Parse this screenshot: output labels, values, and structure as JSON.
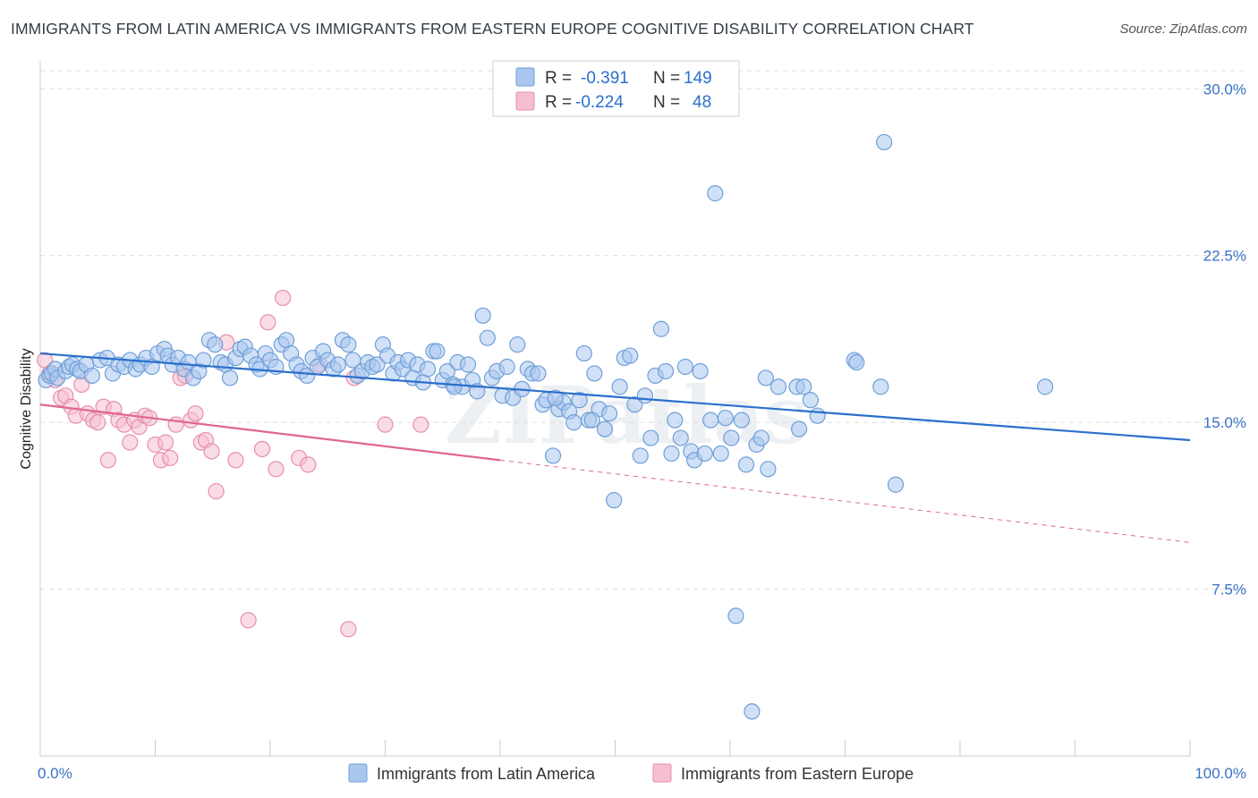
{
  "title": "IMMIGRANTS FROM LATIN AMERICA VS IMMIGRANTS FROM EASTERN EUROPE COGNITIVE DISABILITY CORRELATION CHART",
  "source": "Source: ZipAtlas.com",
  "watermark": "ZIPatlas",
  "colors": {
    "blue_fill": "#a9c7ee",
    "blue_stroke": "#6f9fd8",
    "blue_line": "#2b6fcc",
    "pink_fill": "#f6bfd0",
    "pink_stroke": "#e78fab",
    "pink_line": "#e0678f",
    "axis_text": "#3a72c4",
    "grid": "#dcdcdc"
  },
  "legend": {
    "r_label": "R =",
    "n_label": "N =",
    "rows": [
      {
        "series": "blue",
        "r": "-0.391",
        "n": "149"
      },
      {
        "series": "pink",
        "r": "-0.224",
        "n": "48"
      }
    ]
  },
  "chart_data": {
    "type": "scatter",
    "xlabel": "",
    "ylabel": "Cognitive Disability",
    "xlim": [
      0,
      100
    ],
    "ylim": [
      0,
      31.5
    ],
    "x_tick_labels": [
      "0.0%",
      "100.0%"
    ],
    "y_ticks": [
      7.5,
      15.0,
      22.5,
      30.0
    ],
    "y_tick_labels": [
      "7.5%",
      "15.0%",
      "22.5%",
      "30.0%"
    ],
    "grid": true,
    "legend_position": "top-center",
    "series": [
      {
        "name": "Immigrants from Latin America",
        "color": "blue",
        "r": -0.391,
        "n": 149,
        "trend": {
          "x0": 0,
          "y0": 18.1,
          "x1": 100,
          "y1": 14.2,
          "dashed_to": 100
        },
        "points": [
          [
            0.5,
            16.9
          ],
          [
            0.8,
            17.1
          ],
          [
            1.0,
            17.2
          ],
          [
            1.3,
            17.4
          ],
          [
            1.5,
            17.0
          ],
          [
            2.2,
            17.3
          ],
          [
            2.5,
            17.5
          ],
          [
            2.8,
            17.6
          ],
          [
            3.2,
            17.4
          ],
          [
            3.5,
            17.3
          ],
          [
            4.0,
            17.6
          ],
          [
            4.5,
            17.1
          ],
          [
            5.2,
            17.8
          ],
          [
            5.8,
            17.9
          ],
          [
            6.3,
            17.2
          ],
          [
            6.8,
            17.6
          ],
          [
            7.3,
            17.5
          ],
          [
            7.8,
            17.8
          ],
          [
            8.3,
            17.4
          ],
          [
            8.7,
            17.6
          ],
          [
            9.2,
            17.9
          ],
          [
            9.7,
            17.5
          ],
          [
            10.2,
            18.1
          ],
          [
            10.8,
            18.3
          ],
          [
            11.1,
            18.0
          ],
          [
            11.5,
            17.6
          ],
          [
            12.0,
            17.9
          ],
          [
            12.5,
            17.4
          ],
          [
            12.9,
            17.7
          ],
          [
            13.3,
            17.0
          ],
          [
            13.8,
            17.3
          ],
          [
            14.2,
            17.8
          ],
          [
            14.7,
            18.7
          ],
          [
            15.2,
            18.5
          ],
          [
            15.7,
            17.7
          ],
          [
            16.1,
            17.6
          ],
          [
            16.5,
            17.0
          ],
          [
            17.0,
            17.9
          ],
          [
            17.4,
            18.3
          ],
          [
            17.8,
            18.4
          ],
          [
            18.3,
            18.0
          ],
          [
            18.8,
            17.6
          ],
          [
            19.1,
            17.4
          ],
          [
            19.6,
            18.1
          ],
          [
            20.0,
            17.8
          ],
          [
            20.5,
            17.5
          ],
          [
            21.0,
            18.5
          ],
          [
            21.4,
            18.7
          ],
          [
            21.8,
            18.1
          ],
          [
            22.3,
            17.6
          ],
          [
            22.7,
            17.3
          ],
          [
            23.2,
            17.1
          ],
          [
            23.7,
            17.9
          ],
          [
            24.1,
            17.5
          ],
          [
            24.6,
            18.2
          ],
          [
            25.0,
            17.8
          ],
          [
            25.5,
            17.4
          ],
          [
            25.9,
            17.6
          ],
          [
            26.3,
            18.7
          ],
          [
            26.8,
            18.5
          ],
          [
            27.2,
            17.8
          ],
          [
            27.6,
            17.1
          ],
          [
            28.0,
            17.3
          ],
          [
            28.5,
            17.7
          ],
          [
            28.9,
            17.5
          ],
          [
            29.3,
            17.6
          ],
          [
            29.8,
            18.5
          ],
          [
            30.2,
            18.0
          ],
          [
            30.7,
            17.2
          ],
          [
            31.1,
            17.7
          ],
          [
            31.5,
            17.4
          ],
          [
            32.0,
            17.8
          ],
          [
            32.4,
            17.0
          ],
          [
            32.8,
            17.6
          ],
          [
            33.3,
            16.8
          ],
          [
            33.7,
            17.4
          ],
          [
            34.2,
            18.2
          ],
          [
            34.5,
            18.2
          ],
          [
            35.0,
            16.9
          ],
          [
            35.4,
            17.3
          ],
          [
            35.9,
            16.7
          ],
          [
            36.3,
            17.7
          ],
          [
            36.7,
            16.6
          ],
          [
            37.2,
            17.6
          ],
          [
            37.6,
            16.9
          ],
          [
            38.0,
            16.4
          ],
          [
            38.5,
            19.8
          ],
          [
            38.9,
            18.8
          ],
          [
            39.3,
            17.0
          ],
          [
            39.7,
            17.3
          ],
          [
            40.2,
            16.2
          ],
          [
            40.6,
            17.5
          ],
          [
            41.1,
            16.1
          ],
          [
            41.5,
            18.5
          ],
          [
            41.9,
            16.5
          ],
          [
            42.4,
            17.4
          ],
          [
            42.8,
            17.2
          ],
          [
            43.3,
            17.2
          ],
          [
            43.7,
            15.8
          ],
          [
            44.0,
            16.0
          ],
          [
            44.6,
            13.5
          ],
          [
            45.1,
            15.6
          ],
          [
            45.5,
            15.9
          ],
          [
            46.0,
            15.5
          ],
          [
            46.4,
            15.0
          ],
          [
            46.9,
            16.0
          ],
          [
            47.3,
            18.1
          ],
          [
            47.7,
            15.1
          ],
          [
            48.2,
            17.2
          ],
          [
            48.6,
            15.6
          ],
          [
            49.1,
            14.7
          ],
          [
            49.5,
            15.4
          ],
          [
            49.9,
            11.5
          ],
          [
            50.4,
            16.6
          ],
          [
            50.8,
            17.9
          ],
          [
            51.3,
            18.0
          ],
          [
            51.7,
            15.8
          ],
          [
            52.2,
            13.5
          ],
          [
            52.6,
            16.2
          ],
          [
            53.1,
            14.3
          ],
          [
            53.5,
            17.1
          ],
          [
            54.0,
            19.2
          ],
          [
            54.4,
            17.3
          ],
          [
            54.9,
            13.6
          ],
          [
            55.2,
            15.1
          ],
          [
            55.7,
            14.3
          ],
          [
            56.1,
            17.5
          ],
          [
            56.6,
            13.7
          ],
          [
            56.9,
            13.3
          ],
          [
            57.4,
            17.3
          ],
          [
            57.8,
            13.6
          ],
          [
            58.3,
            15.1
          ],
          [
            58.7,
            25.3
          ],
          [
            59.2,
            13.6
          ],
          [
            59.6,
            15.2
          ],
          [
            60.1,
            14.3
          ],
          [
            60.5,
            6.3
          ],
          [
            61.0,
            15.1
          ],
          [
            61.4,
            13.1
          ],
          [
            61.9,
            2.0
          ],
          [
            62.3,
            14.0
          ],
          [
            62.7,
            14.3
          ],
          [
            63.1,
            17.0
          ],
          [
            64.2,
            16.6
          ],
          [
            65.8,
            16.6
          ],
          [
            66.4,
            16.6
          ],
          [
            67.0,
            16.0
          ],
          [
            70.8,
            17.8
          ],
          [
            71.0,
            17.7
          ],
          [
            73.1,
            16.6
          ],
          [
            73.4,
            27.6
          ],
          [
            74.4,
            12.2
          ],
          [
            87.4,
            16.6
          ],
          [
            67.6,
            15.3
          ],
          [
            63.3,
            12.9
          ],
          [
            66.0,
            14.7
          ],
          [
            48.0,
            15.1
          ],
          [
            44.8,
            16.1
          ],
          [
            36.0,
            16.6
          ]
        ]
      },
      {
        "name": "Immigrants from Eastern Europe",
        "color": "pink",
        "r": -0.224,
        "n": 48,
        "trend": {
          "x0": 0,
          "y0": 15.8,
          "x1": 40,
          "y1": 13.3,
          "dashed_to": 100,
          "y_dashed_end": 9.6
        },
        "points": [
          [
            0.4,
            17.8
          ],
          [
            0.8,
            17.2
          ],
          [
            1.3,
            16.9
          ],
          [
            1.8,
            16.1
          ],
          [
            2.2,
            16.2
          ],
          [
            2.7,
            15.7
          ],
          [
            3.1,
            15.3
          ],
          [
            3.6,
            16.7
          ],
          [
            4.1,
            15.4
          ],
          [
            4.6,
            15.1
          ],
          [
            5.0,
            15.0
          ],
          [
            5.5,
            15.7
          ],
          [
            5.9,
            13.3
          ],
          [
            6.4,
            15.6
          ],
          [
            6.8,
            15.1
          ],
          [
            7.3,
            14.9
          ],
          [
            7.8,
            14.1
          ],
          [
            8.2,
            15.1
          ],
          [
            8.6,
            14.8
          ],
          [
            9.1,
            15.3
          ],
          [
            9.5,
            15.2
          ],
          [
            10.0,
            14.0
          ],
          [
            10.5,
            13.3
          ],
          [
            10.9,
            14.1
          ],
          [
            11.3,
            13.4
          ],
          [
            11.8,
            14.9
          ],
          [
            12.2,
            17.0
          ],
          [
            12.6,
            17.1
          ],
          [
            13.1,
            15.1
          ],
          [
            13.5,
            15.4
          ],
          [
            14.0,
            14.1
          ],
          [
            14.4,
            14.2
          ],
          [
            14.9,
            13.7
          ],
          [
            15.3,
            11.9
          ],
          [
            16.2,
            18.6
          ],
          [
            17.0,
            13.3
          ],
          [
            18.1,
            6.1
          ],
          [
            19.3,
            13.8
          ],
          [
            19.8,
            19.5
          ],
          [
            20.5,
            12.9
          ],
          [
            21.1,
            20.6
          ],
          [
            22.5,
            13.4
          ],
          [
            23.3,
            13.1
          ],
          [
            24.3,
            17.6
          ],
          [
            26.8,
            5.7
          ],
          [
            27.3,
            17.0
          ],
          [
            30.0,
            14.9
          ],
          [
            33.1,
            14.9
          ]
        ]
      }
    ]
  }
}
